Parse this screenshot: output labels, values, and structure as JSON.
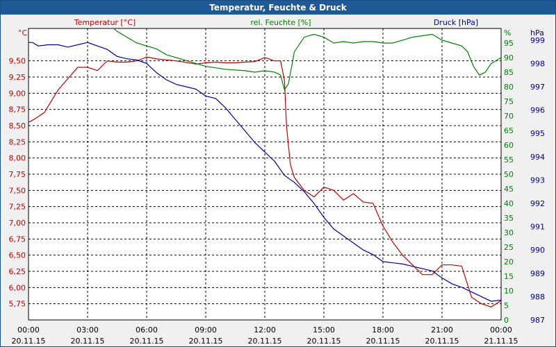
{
  "window": {
    "title": "Temperatur, Feuchte & Druck"
  },
  "colors": {
    "temperature": "#c00000",
    "humidity": "#008000",
    "pressure": "#0000a0",
    "grid": "#000000",
    "background": "#ffffff"
  },
  "chart_data": {
    "type": "line",
    "title": "Temperatur, Feuchte & Druck",
    "grid": true,
    "x_ticks": [
      {
        "time": "00:00",
        "date": "20.11.15"
      },
      {
        "time": "03:00",
        "date": "20.11.15"
      },
      {
        "time": "06:00",
        "date": "20.11.15"
      },
      {
        "time": "09:00",
        "date": "20.11.15"
      },
      {
        "time": "12:00",
        "date": "20.11.15"
      },
      {
        "time": "15:00",
        "date": "20.11.15"
      },
      {
        "time": "18:00",
        "date": "20.11.15"
      },
      {
        "time": "21:00",
        "date": "20.11.15"
      },
      {
        "time": "00:00",
        "date": "21.11.15"
      }
    ],
    "xlim_hours": [
      0,
      24
    ],
    "axes": {
      "temperature": {
        "label": "Temperatur [°C]",
        "unit": "°C",
        "ylim": [
          5.5,
          10.0
        ],
        "ticks": [
          "9,50",
          "9,25",
          "9,00",
          "8,75",
          "8,50",
          "8,25",
          "8,00",
          "7,75",
          "7,50",
          "7,25",
          "7,00",
          "6,75",
          "6,50",
          "6,25",
          "6,00",
          "5,75"
        ]
      },
      "humidity": {
        "label": "rel. Feuchte [%]",
        "unit": "%",
        "ylim": [
          0,
          100
        ],
        "ticks": [
          "95",
          "90",
          "85",
          "80",
          "75",
          "70",
          "65",
          "60",
          "55",
          "50",
          "45",
          "40",
          "35",
          "30",
          "25",
          "20",
          "15",
          "10",
          "5",
          "0"
        ]
      },
      "pressure": {
        "label": "Druck [hPa]",
        "unit": "hPa",
        "ylim": [
          987,
          999.5
        ],
        "ticks": [
          "999",
          "998",
          "997",
          "996",
          "995",
          "994",
          "993",
          "992",
          "991",
          "990",
          "989",
          "988",
          "987"
        ]
      }
    },
    "series": [
      {
        "name": "Temperatur [°C]",
        "axis": "temperature",
        "color": "#c00000",
        "x": [
          0,
          0.3,
          0.8,
          1.5,
          2.5,
          3.0,
          3.5,
          4.0,
          4.5,
          5.0,
          5.5,
          6.0,
          6.5,
          7.5,
          8.5,
          9.0,
          9.5,
          10.0,
          10.5,
          11.0,
          11.5,
          12.0,
          12.5,
          12.8,
          13.0,
          13.1,
          13.3,
          13.5,
          14.0,
          14.5,
          15.0,
          15.5,
          16.0,
          16.5,
          17.0,
          17.5,
          18.0,
          18.5,
          19.0,
          19.5,
          20.0,
          20.5,
          21.0,
          21.5,
          22.0,
          22.5,
          23.0,
          23.5,
          24.0
        ],
        "y": [
          8.55,
          8.6,
          8.7,
          9.05,
          9.4,
          9.4,
          9.35,
          9.5,
          9.48,
          9.48,
          9.5,
          9.56,
          9.53,
          9.5,
          9.45,
          9.47,
          9.48,
          9.47,
          9.47,
          9.48,
          9.49,
          9.55,
          9.5,
          9.5,
          9.2,
          8.5,
          7.9,
          7.7,
          7.5,
          7.4,
          7.55,
          7.5,
          7.35,
          7.45,
          7.32,
          7.3,
          6.95,
          6.7,
          6.5,
          6.35,
          6.2,
          6.2,
          6.35,
          6.35,
          6.33,
          5.85,
          5.75,
          5.7,
          5.8
        ]
      },
      {
        "name": "rel. Feuchte [%]",
        "axis": "humidity",
        "color": "#008000",
        "x": [
          3.5,
          4.0,
          4.5,
          5.0,
          5.5,
          6.0,
          6.5,
          7.0,
          8.0,
          9.0,
          10.0,
          11.0,
          11.5,
          12.0,
          12.5,
          12.8,
          13.0,
          13.2,
          13.5,
          14.0,
          14.5,
          15.0,
          15.5,
          16.0,
          16.5,
          17.0,
          17.5,
          18.0,
          18.5,
          19.0,
          19.5,
          20.0,
          20.5,
          21.0,
          21.5,
          22.0,
          22.3,
          22.6,
          22.9,
          23.2,
          23.5,
          24.0
        ],
        "y": [
          105,
          102,
          99,
          97,
          95,
          94,
          93,
          91,
          89,
          87,
          86,
          85.5,
          85,
          85.5,
          85,
          84,
          79,
          81,
          92,
          97,
          98,
          97,
          95,
          95.5,
          95,
          95.5,
          95.5,
          95,
          95,
          96,
          97,
          97.5,
          98,
          96,
          95,
          94,
          92,
          87,
          84,
          85,
          88,
          90
        ]
      },
      {
        "name": "Druck [hPa]",
        "axis": "pressure",
        "color": "#0000a0",
        "x": [
          0,
          0.2,
          0.5,
          1.0,
          1.5,
          2.0,
          2.5,
          3.0,
          3.5,
          4.0,
          4.5,
          5.0,
          5.5,
          6.0,
          6.5,
          7.0,
          7.5,
          8.0,
          8.5,
          9.0,
          9.5,
          10.0,
          10.5,
          11.0,
          11.5,
          12.0,
          12.5,
          13.0,
          13.5,
          14.0,
          14.5,
          15.0,
          15.5,
          16.0,
          16.5,
          17.0,
          17.5,
          18.0,
          18.5,
          19.0,
          19.5,
          20.0,
          20.5,
          21.0,
          21.5,
          22.0,
          22.5,
          23.0,
          23.5,
          24.0
        ],
        "y": [
          998.9,
          998.9,
          998.75,
          998.8,
          998.8,
          998.7,
          998.8,
          998.9,
          998.75,
          998.6,
          998.3,
          998.2,
          998.15,
          998.0,
          997.6,
          997.3,
          997.1,
          997.0,
          996.9,
          996.6,
          996.5,
          996.1,
          995.6,
          995.1,
          994.6,
          994.2,
          993.8,
          993.2,
          992.9,
          992.5,
          992.0,
          991.4,
          990.9,
          990.6,
          990.3,
          990.0,
          989.8,
          989.5,
          989.45,
          989.4,
          989.3,
          989.2,
          989.1,
          988.8,
          988.55,
          988.4,
          988.2,
          988.0,
          987.8,
          987.85
        ]
      }
    ]
  }
}
